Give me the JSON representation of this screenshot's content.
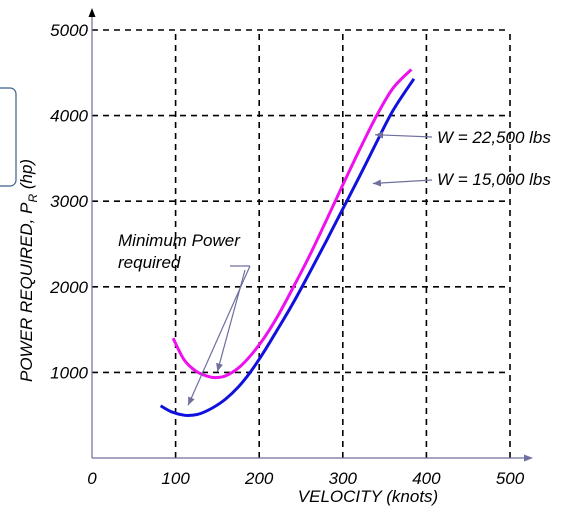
{
  "chart_data": {
    "type": "line",
    "title": "",
    "xlabel": "VELOCITY (knots)",
    "ylabel": "POWER REQUIRED, P",
    "ylabel_sub": "R",
    "ylabel_unit": " (hp)",
    "xlim": [
      0,
      500
    ],
    "ylim": [
      0,
      5000
    ],
    "xticks": [
      0,
      100,
      200,
      300,
      400,
      500
    ],
    "xtick_labels": [
      "0",
      "100",
      "200",
      "300",
      "400",
      "500"
    ],
    "yticks": [
      1000,
      2000,
      3000,
      4000,
      5000
    ],
    "ytick_labels": [
      "1000",
      "2000",
      "3000",
      "4000",
      "5000"
    ],
    "grid": true,
    "series": [
      {
        "name": "W = 22,500 lbs",
        "color": "#ee11ee",
        "x": [
          97,
          110,
          125,
          140,
          150,
          160,
          175,
          190,
          205,
          220,
          240,
          260,
          280,
          300,
          320,
          340,
          360,
          382
        ],
        "y": [
          1400,
          1150,
          1010,
          950,
          940,
          960,
          1050,
          1200,
          1390,
          1620,
          1980,
          2360,
          2770,
          3190,
          3600,
          3990,
          4320,
          4540
        ]
      },
      {
        "name": "W = 15,000 lbs",
        "color": "#1111dd",
        "x": [
          82,
          95,
          110,
          120,
          130,
          145,
          160,
          175,
          190,
          205,
          220,
          240,
          260,
          280,
          300,
          320,
          340,
          360,
          385
        ],
        "y": [
          610,
          540,
          500,
          500,
          520,
          590,
          690,
          830,
          1010,
          1230,
          1470,
          1800,
          2160,
          2530,
          2910,
          3290,
          3680,
          4060,
          4430
        ]
      }
    ],
    "annotations": [
      {
        "text": "Minimum Power",
        "text2": "required",
        "points_to": [
          [
            115,
            500
          ],
          [
            150,
            940
          ]
        ]
      },
      {
        "text": "W = 22,500 lbs",
        "points_to": [
          [
            335,
            3800
          ]
        ]
      },
      {
        "text": "W = 15,000 lbs",
        "points_to": [
          [
            330,
            3300
          ]
        ]
      }
    ]
  }
}
